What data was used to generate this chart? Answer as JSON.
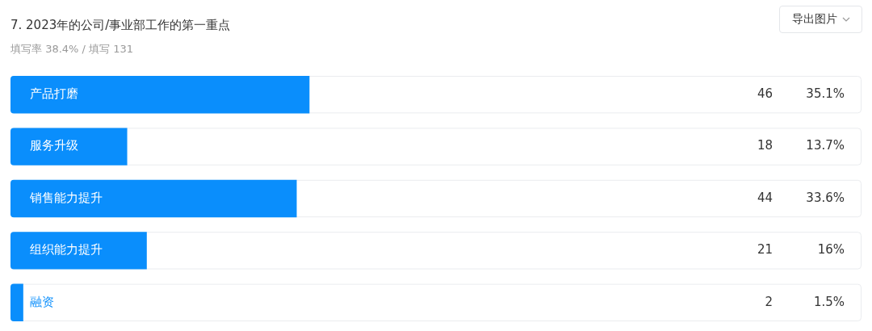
{
  "chart_data": {
    "type": "bar",
    "orientation": "horizontal",
    "title": "7. 2023年的公司/事业部工作的第一重点",
    "subtitle": "填写率 38.4% / 填写 131",
    "categories": [
      "产品打磨",
      "服务升级",
      "销售能力提升",
      "组织能力提升",
      "融资"
    ],
    "values": [
      35.1,
      13.7,
      33.6,
      16,
      1.5
    ],
    "value_labels": [
      "35.1%",
      "13.7%",
      "33.6%",
      "16%",
      "1.5%"
    ],
    "color": "#0a8efc",
    "annotations": [
      "46",
      "18",
      "44",
      "21",
      "2",
      "导出图片"
    ]
  }
}
